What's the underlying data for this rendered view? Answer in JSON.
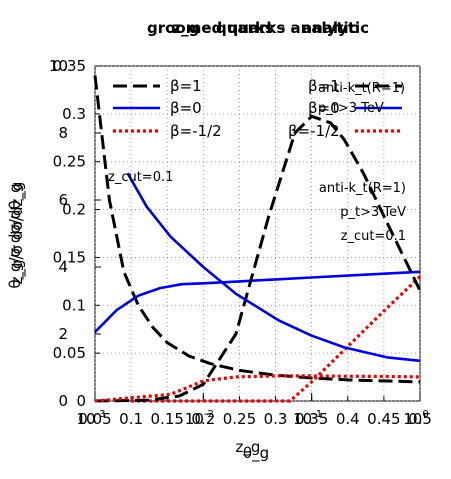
{
  "titles": [
    "groomed quarks - analytic",
    "z_g - quarks - analytic"
  ],
  "xlabels": [
    "z_g",
    "θ_g"
  ],
  "ylabels": [
    "θ_g/σ dσ/dθ_g",
    "z_g/σ dσ/dz_g"
  ],
  "colors": {
    "beta1": "#000000",
    "beta0": "#0000dd",
    "betam": "#ee0000"
  },
  "chart_data": [
    {
      "type": "line",
      "panel": "z_g distribution (linear axes)",
      "title": "z_g - quarks - analytic",
      "xlabel": "z_g",
      "ylabel": "z_g/σ dσ/dz_g",
      "xlim": [
        0.05,
        0.5
      ],
      "ylim": [
        0,
        0.35
      ],
      "x_ticks": [
        "0.05",
        "0.1",
        "0.15",
        "0.2",
        "0.25",
        "0.3",
        "0.35",
        "0.4",
        "0.45",
        "0.5"
      ],
      "y_ticks": [
        "0",
        "0.05",
        "0.1",
        "0.15",
        "0.2",
        "0.25",
        "0.3",
        "0.35"
      ],
      "grid": true,
      "legend_position": "top-left",
      "annotation": "z_cut=0.1",
      "series": [
        {
          "name": "β=1",
          "style": "dashed",
          "color": "#000000",
          "x": [
            0.05,
            0.07,
            0.09,
            0.11,
            0.13,
            0.15,
            0.18,
            0.21,
            0.25,
            0.3,
            0.35,
            0.4,
            0.45,
            0.5
          ],
          "y": [
            0.34,
            0.21,
            0.135,
            0.1,
            0.077,
            0.061,
            0.047,
            0.039,
            0.032,
            0.027,
            0.024,
            0.022,
            0.021,
            0.02
          ]
        },
        {
          "name": "β=0",
          "style": "solid",
          "color": "#0000dd",
          "x": [
            0.05,
            0.08,
            0.11,
            0.14,
            0.17,
            0.2,
            0.25,
            0.3,
            0.35,
            0.4,
            0.45,
            0.5
          ],
          "y": [
            0.072,
            0.095,
            0.11,
            0.118,
            0.122,
            0.123,
            0.125,
            0.127,
            0.129,
            0.131,
            0.133,
            0.135
          ]
        },
        {
          "name": "β=-1/2",
          "style": "dotted",
          "color": "#ee0000",
          "x": [
            0.1,
            0.32,
            0.35,
            0.4,
            0.45,
            0.5
          ],
          "y": [
            0,
            0,
            0.02,
            0.057,
            0.094,
            0.13
          ]
        }
      ]
    },
    {
      "type": "line",
      "panel": "θ_g distribution (log x axis)",
      "title": "groomed quarks - analytic",
      "xlabel": "θ_g",
      "ylabel": "θ_g/σ dσ/dθ_g",
      "xscale": "log",
      "xlim": [
        0.001,
        1
      ],
      "ylim": [
        0,
        10
      ],
      "x_ticks": [
        "10^-3",
        "10^-2",
        "10^-1",
        "10^0"
      ],
      "y_ticks": [
        "0",
        "2",
        "4",
        "6",
        "8",
        "10"
      ],
      "legend_position": "top-right",
      "annotation_lines": [
        "anti-k_t(R=1)",
        "p_t>3 TeV",
        "z_cut=0.1"
      ],
      "series": [
        {
          "name": "β=1",
          "style": "dashed",
          "color": "#000000",
          "x": [
            0.001,
            0.003,
            0.006,
            0.01,
            0.02,
            0.04,
            0.07,
            0.1,
            0.15,
            0.2,
            0.3,
            0.5,
            1
          ],
          "y": [
            0,
            0.02,
            0.15,
            0.5,
            2,
            5.5,
            8,
            8.5,
            8.3,
            7.8,
            6.8,
            5.3,
            3.3
          ]
        },
        {
          "name": "β=0",
          "style": "solid",
          "color": "#0000dd",
          "x": [
            0.002,
            0.003,
            0.005,
            0.01,
            0.02,
            0.05,
            0.1,
            0.2,
            0.5,
            1
          ],
          "y": [
            6.8,
            5.8,
            4.9,
            4.0,
            3.2,
            2.4,
            1.95,
            1.6,
            1.3,
            1.2
          ]
        },
        {
          "name": "β=-1/2",
          "style": "dotted",
          "color": "#ee0000",
          "x": [
            0.001,
            0.005,
            0.01,
            0.02,
            0.05,
            0.1,
            0.2,
            0.5,
            1
          ],
          "y": [
            0,
            0.2,
            0.6,
            0.72,
            0.75,
            0.75,
            0.74,
            0.73,
            0.72
          ]
        }
      ]
    }
  ]
}
